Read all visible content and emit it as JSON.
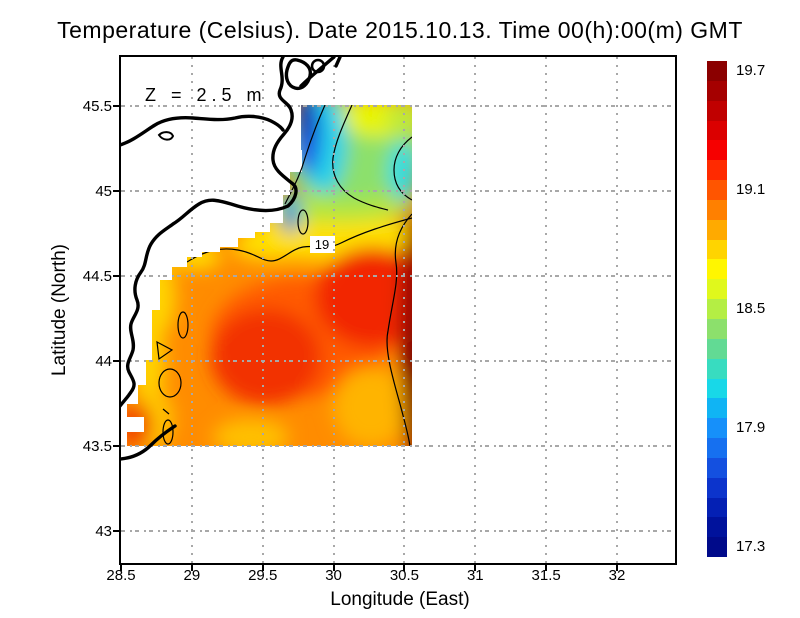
{
  "title": "Temperature (Celsius). Date 2015.10.13. Time 00(h):00(m) GMT",
  "annotation": "Z = 2.5 m",
  "contour_label": "19",
  "axes": {
    "x": {
      "label": "Longitude (East)",
      "ticks": [
        "28.5",
        "29",
        "29.5",
        "30",
        "30.5",
        "31",
        "31.5",
        "32"
      ]
    },
    "y": {
      "label": "Latitude (North)",
      "ticks": [
        "45.5",
        "45",
        "44.5",
        "44",
        "43.5",
        "43"
      ]
    }
  },
  "colorbar": {
    "labels": [
      "19.7",
      "19.1",
      "18.5",
      "17.9",
      "17.3"
    ],
    "colors": [
      "#8b0000",
      "#a50000",
      "#c00000",
      "#db0000",
      "#f60000",
      "#ff2a00",
      "#ff5500",
      "#ff8000",
      "#ffaa00",
      "#ffd400",
      "#fff600",
      "#e0f81c",
      "#b4ee44",
      "#8ce06c",
      "#62da94",
      "#38dcc0",
      "#18d8e8",
      "#10b4f4",
      "#1690fa",
      "#1670f0",
      "#1450e0",
      "#0c34cc",
      "#0420b4",
      "#00129c",
      "#000a8a"
    ]
  },
  "grid_color": "#a8a8a8",
  "chart_data": {
    "type": "heatmap",
    "title": "Temperature (Celsius). Date 2015.10.13. Time 00(h):00(m) GMT",
    "variable": "Temperature",
    "units": "Celsius",
    "date": "2015.10.13",
    "time": "00(h):00(m) GMT",
    "depth_annotation": "Z = 2.5 m",
    "xlabel": "Longitude (East)",
    "ylabel": "Latitude (North)",
    "xlim": [
      28.5,
      32.4
    ],
    "ylim": [
      42.8,
      45.77
    ],
    "xticks": [
      28.5,
      29,
      29.5,
      30,
      30.5,
      31,
      31.5,
      32
    ],
    "yticks": [
      43,
      43.5,
      44,
      44.5,
      45,
      45.5
    ],
    "grid": "dotted",
    "colorbar_range": [
      17.3,
      19.7
    ],
    "colorbar_ticks": [
      19.7,
      19.1,
      18.5,
      17.9,
      17.3
    ],
    "colorbar_step": 0.1,
    "data_extent": {
      "lon": [
        28.55,
        30.55
      ],
      "lat": [
        43.5,
        45.5
      ]
    },
    "contours": {
      "labeled_levels": [
        19
      ],
      "estimated_interval": 0.4
    },
    "sample_grid": {
      "lons": [
        28.7,
        29.2,
        29.7,
        30.2,
        30.5
      ],
      "lats": [
        45.4,
        45.1,
        44.8,
        44.5,
        44.0,
        43.6
      ],
      "values_c": [
        [
          null,
          null,
          17.6,
          18.6,
          18.7
        ],
        [
          null,
          null,
          18.1,
          18.7,
          18.3
        ],
        [
          null,
          18.9,
          18.9,
          19.0,
          19.1
        ],
        [
          19.0,
          19.1,
          19.2,
          19.3,
          19.4
        ],
        [
          18.9,
          19.2,
          19.4,
          19.3,
          19.6
        ],
        [
          19.0,
          19.2,
          19.2,
          19.3,
          19.7
        ]
      ]
    },
    "notes": "Sea field over western Black Sea; coastline with Danube river and delta drawn in black; cold (blue) patch near river mouth at top, warmest (dark red) along southeast data edge."
  }
}
